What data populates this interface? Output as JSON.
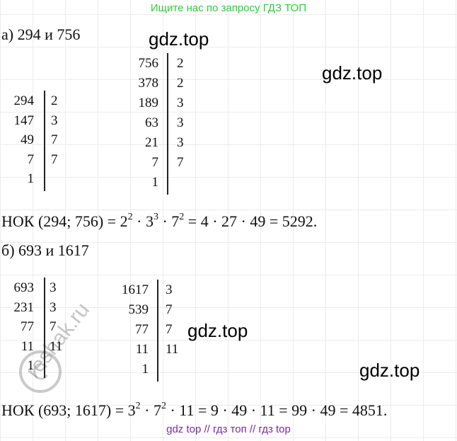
{
  "banner": "Ищите нас по запросу ГДЗ ТОП",
  "problems": [
    {
      "heading": "а) 294 и 756",
      "tables": [
        {
          "rows": [
            {
              "n": "294",
              "f": "2"
            },
            {
              "n": "147",
              "f": "3"
            },
            {
              "n": "49",
              "f": "7"
            },
            {
              "n": "7",
              "f": "7"
            },
            {
              "n": "1"
            }
          ]
        },
        {
          "rows": [
            {
              "n": "756",
              "f": "2"
            },
            {
              "n": "378",
              "f": "2"
            },
            {
              "n": "189",
              "f": "3"
            },
            {
              "n": "63",
              "f": "3"
            },
            {
              "n": "21",
              "f": "3"
            },
            {
              "n": "7",
              "f": "7"
            },
            {
              "n": "1"
            }
          ]
        }
      ],
      "result": [
        {
          "text": "НОК (294; 756) = 2"
        },
        {
          "sup": "2"
        },
        {
          "text": " · 3"
        },
        {
          "sup": "3"
        },
        {
          "text": " · 7"
        },
        {
          "sup": "2"
        },
        {
          "text": " = 4 · 27 · 49 = 5292."
        }
      ]
    },
    {
      "heading": "б) 693 и 1617",
      "tables": [
        {
          "rows": [
            {
              "n": "693",
              "f": "3"
            },
            {
              "n": "231",
              "f": "3"
            },
            {
              "n": "77",
              "f": "7"
            },
            {
              "n": "11",
              "f": "11"
            },
            {
              "n": "1"
            }
          ]
        },
        {
          "rows": [
            {
              "n": "1617",
              "f": "3"
            },
            {
              "n": "539",
              "f": "7"
            },
            {
              "n": "77",
              "f": "7"
            },
            {
              "n": "11",
              "f": "11"
            },
            {
              "n": "1"
            }
          ]
        }
      ],
      "result": [
        {
          "text": "НОК (693; 1617) = 3"
        },
        {
          "sup": "2"
        },
        {
          "text": " · 7"
        },
        {
          "sup": "2"
        },
        {
          "text": " · 11 = 9 · 49 · 11 = 99 · 49 = 4851."
        }
      ]
    }
  ],
  "watermarks": [
    "gdz.top",
    "gdz.top",
    "gdz.top",
    "gdz.top"
  ],
  "reshak": "reshak.ru",
  "footer": "gdz top // гдз топ // гдз top"
}
